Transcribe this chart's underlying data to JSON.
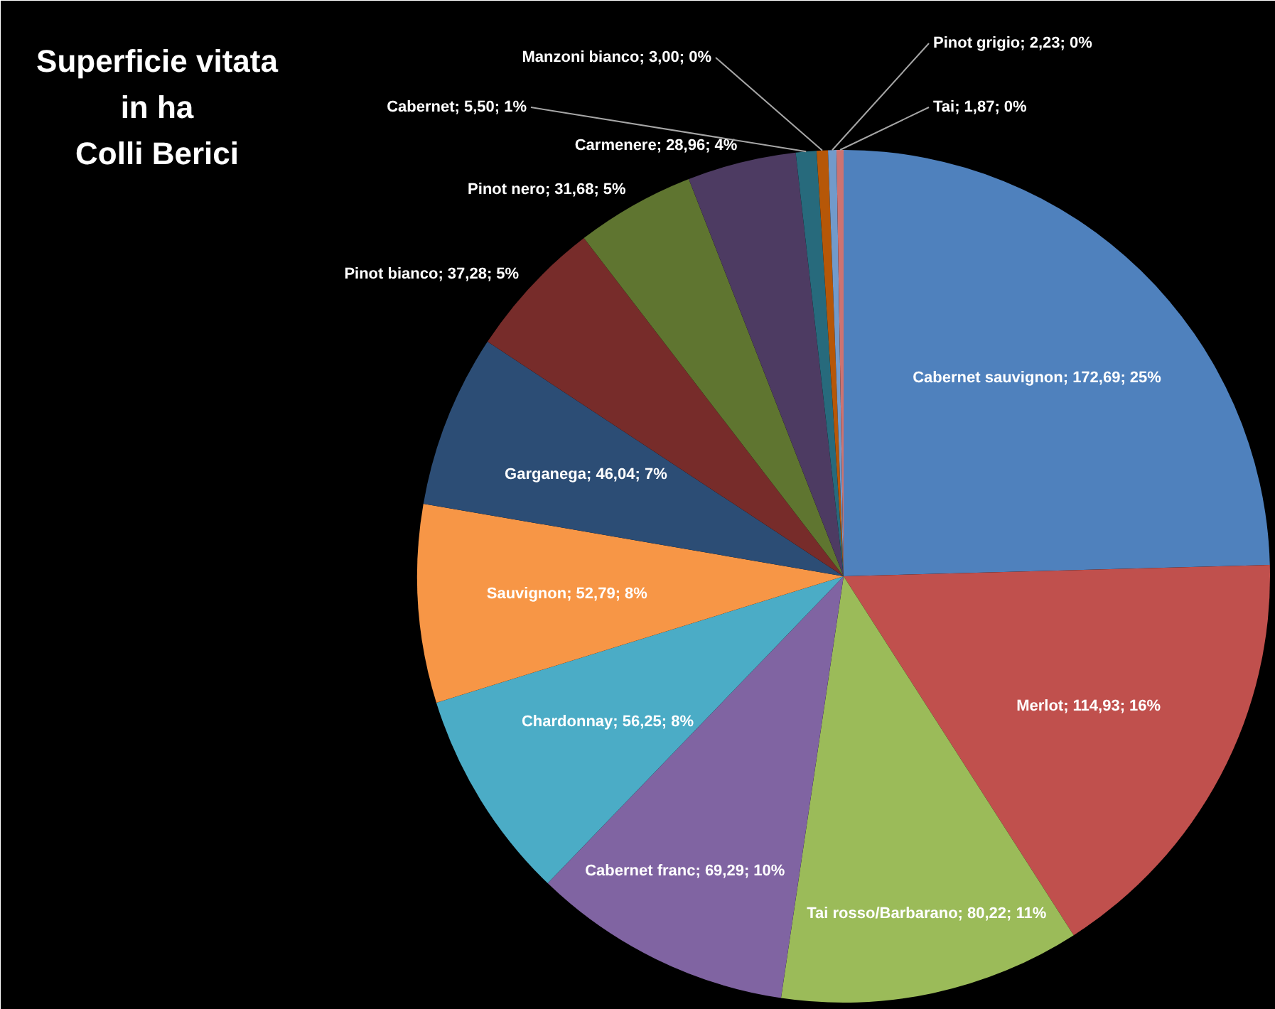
{
  "chart_data": {
    "type": "pie",
    "title": "Superficie vitata\nin ha\nColli Berici",
    "categories": [
      "Cabernet sauvignon",
      "Merlot",
      "Tai rosso/Barbarano",
      "Cabernet franc",
      "Chardonnay",
      "Sauvignon",
      "Garganega",
      "Pinot bianco",
      "Pinot nero",
      "Carmenere",
      "Cabernet",
      "Manzoni bianco",
      "Pinot grigio",
      "Tai"
    ],
    "values": [
      172.69,
      114.93,
      80.22,
      69.29,
      56.25,
      52.79,
      46.04,
      37.28,
      31.68,
      28.96,
      5.5,
      3.0,
      2.23,
      1.87
    ],
    "value_labels": [
      "172,69; 25%",
      "114,93; 16%",
      "80,22; 11%",
      "69,29; 10%",
      "56,25; 8%",
      "52,79; 8%",
      "46,04; 7%",
      "37,28; 5%",
      "31,68; 5%",
      "28,96; 4%",
      "5,50; 1%",
      "3,00; 0%",
      "2,23; 0%",
      "1,87; 0%"
    ],
    "colors": [
      "#4f81bd",
      "#c0504d",
      "#9bbb59",
      "#8064a2",
      "#4bacc6",
      "#f79646",
      "#2c4d75",
      "#772c2a",
      "#5f7530",
      "#4d3b62",
      "#276a7c",
      "#b65708",
      "#729aca",
      "#cd7371"
    ]
  }
}
